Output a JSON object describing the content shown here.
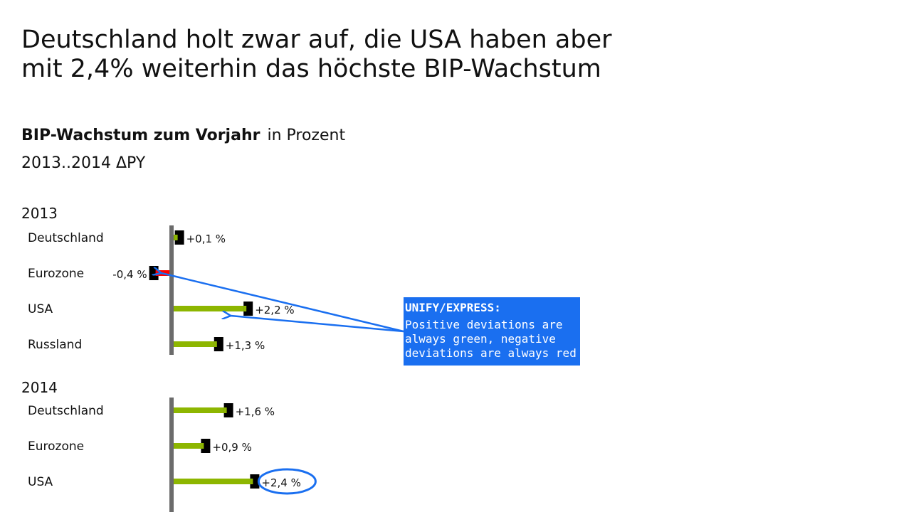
{
  "headline": {
    "line1": "Deutschland holt zwar auf, die USA haben aber",
    "line2": "mit 2,4% weiterhin das höchste BIP-Wachstum"
  },
  "chart_header": {
    "title": "BIP-Wachstum zum Vorjahr",
    "unit": "in Prozent",
    "subtitle": "2013..2014 ΔPY"
  },
  "callout": {
    "title": "UNIFY/EXPRESS:",
    "body": "Positive deviations are always green, negative deviations are always red"
  },
  "colors": {
    "positive": "#8db600",
    "negative": "#ff0000",
    "marker": "#000000",
    "axis": "#6b6b6b",
    "callout": "#1a6ff0"
  },
  "chart_data": {
    "type": "bar",
    "orientation": "horizontal",
    "unit": "%",
    "panels": [
      {
        "title": "2013",
        "categories": [
          "Deutschland",
          "Eurozone",
          "USA",
          "Russland"
        ],
        "values": [
          0.1,
          -0.4,
          2.2,
          1.3
        ],
        "labels": [
          "+0,1 %",
          "-0,4 %",
          "+2,2 %",
          "+1,3 %"
        ]
      },
      {
        "title": "2014",
        "categories": [
          "Deutschland",
          "Eurozone",
          "USA"
        ],
        "values": [
          1.6,
          0.9,
          2.4
        ],
        "labels": [
          "+1,6 %",
          "+0,9 %",
          "+2,4 %"
        ],
        "highlight_index": 2
      }
    ]
  }
}
